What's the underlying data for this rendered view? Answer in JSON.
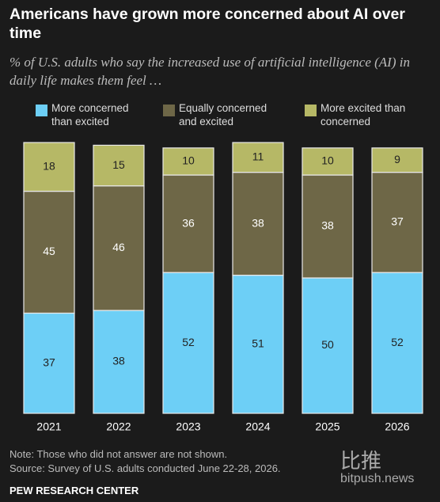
{
  "chart_data": {
    "type": "stacked-bar",
    "title": "Americans have grown more concerned about AI over time",
    "subtitle": "% of U.S. adults who say the increased use of artificial intelligence (AI) in daily life makes them feel …",
    "categories": [
      "2021",
      "2022",
      "2023",
      "2024",
      "2025",
      "2026"
    ],
    "series": [
      {
        "name": "More concerned than excited",
        "color": "#6dcff6",
        "label_color": "#222222",
        "values": [
          37,
          38,
          52,
          51,
          50,
          52
        ]
      },
      {
        "name": "Equally concerned and excited",
        "color": "#6e6747",
        "label_color": "#ffffff",
        "values": [
          45,
          46,
          36,
          38,
          38,
          37
        ]
      },
      {
        "name": "More excited than concerned",
        "color": "#b6b866",
        "label_color": "#222222",
        "values": [
          18,
          15,
          10,
          11,
          10,
          9
        ]
      }
    ],
    "ylim": [
      0,
      100
    ],
    "note": "Note: Those who did not answer are not shown.",
    "source": "Source: Survey of U.S. adults conducted June 22-28, 2026.",
    "brand": "PEW RESEARCH CENTER",
    "watermark": {
      "name": "比推",
      "site": "bitpush.news"
    }
  }
}
